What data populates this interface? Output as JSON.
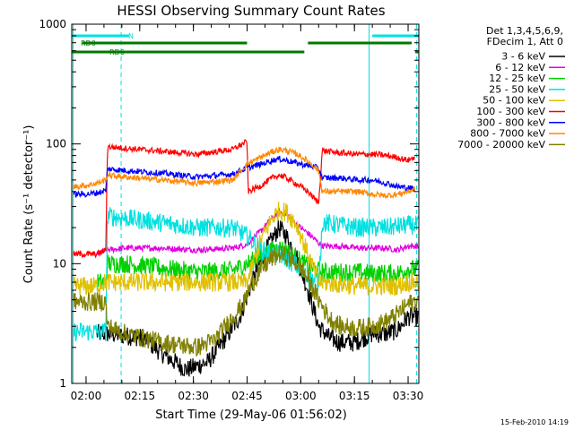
{
  "chart_data": {
    "type": "line",
    "title": "HESSI Observing Summary Count Rates",
    "xlabel": "Start Time (29-May-06 01:56:02)",
    "ylabel": "Count Rate (s⁻¹ detector⁻¹)",
    "y_scale": "log",
    "ylim": [
      1,
      1000
    ],
    "x_range_minutes": [
      0,
      97
    ],
    "x_ticks": [
      {
        "t": 4,
        "label": "02:00"
      },
      {
        "t": 19,
        "label": "02:15"
      },
      {
        "t": 34,
        "label": "02:30"
      },
      {
        "t": 49,
        "label": "02:45"
      },
      {
        "t": 64,
        "label": "03:00"
      },
      {
        "t": 79,
        "label": "03:15"
      },
      {
        "t": 94,
        "label": "03:30"
      }
    ],
    "y_ticks": [
      {
        "v": 1,
        "label": "1"
      },
      {
        "v": 10,
        "label": "10"
      },
      {
        "v": 100,
        "label": "100"
      },
      {
        "v": 1000,
        "label": "1000"
      }
    ],
    "legend_header": [
      "Det 1,3,4,5,6,9,",
      "FDecim 1, Att 0"
    ],
    "legend_placement": "right",
    "date_stamp": "15-Feb-2010 14:19",
    "flags": [
      {
        "label": "N",
        "color": "#00e0e0",
        "segments": [
          [
            0,
            16
          ],
          [
            84,
            97
          ]
        ]
      },
      {
        "label": "RD0",
        "color": "#007a00",
        "segments": [
          [
            3,
            49
          ],
          [
            66,
            95
          ]
        ]
      },
      {
        "label": "RD6",
        "color": "#007a00",
        "segments": [
          [
            0,
            49
          ],
          [
            49,
            65
          ],
          [
            96,
            97
          ]
        ]
      }
    ],
    "vlines": [
      {
        "t": 0.4,
        "style": "solid",
        "color": "#00e0e0"
      },
      {
        "t": 13.8,
        "style": "dashed",
        "color": "#00e0e0"
      },
      {
        "t": 83.1,
        "style": "solid",
        "color": "#00e0e0"
      },
      {
        "t": 96.4,
        "style": "dashed",
        "color": "#00e0e0"
      }
    ],
    "series": [
      {
        "name": "3 - 6 keV",
        "color": "#000000",
        "points": [
          [
            7,
            2.6
          ],
          [
            10,
            2.6
          ],
          [
            20,
            2.4
          ],
          [
            25,
            1.8
          ],
          [
            32,
            1.3
          ],
          [
            38,
            1.5
          ],
          [
            43,
            2.4
          ],
          [
            47,
            3.6
          ],
          [
            50,
            6.5
          ],
          [
            53,
            11
          ],
          [
            56,
            16
          ],
          [
            58,
            20
          ],
          [
            60,
            17
          ],
          [
            63,
            11
          ],
          [
            66,
            6
          ],
          [
            69,
            3
          ],
          [
            72,
            2.4
          ],
          [
            75,
            2.2
          ],
          [
            79,
            2.2
          ],
          [
            84,
            2.6
          ],
          [
            88,
            2.6
          ],
          [
            91,
            2.8
          ],
          [
            94,
            3.6
          ],
          [
            97,
            3.6
          ]
        ]
      },
      {
        "name": "6 - 12 keV",
        "color": "#e000e0",
        "points": [
          [
            7,
            12
          ],
          [
            10,
            13
          ],
          [
            15,
            13.5
          ],
          [
            25,
            13.5
          ],
          [
            35,
            13
          ],
          [
            45,
            13.5
          ],
          [
            49,
            14.5
          ],
          [
            53,
            19
          ],
          [
            56,
            24
          ],
          [
            58,
            27
          ],
          [
            60,
            26
          ],
          [
            63,
            21
          ],
          [
            66,
            18
          ],
          [
            70,
            14
          ],
          [
            75,
            14
          ],
          [
            80,
            13.5
          ],
          [
            84,
            13.5
          ],
          [
            88,
            13.5
          ],
          [
            91,
            13
          ],
          [
            94,
            14
          ],
          [
            97,
            14
          ]
        ]
      },
      {
        "name": "12 - 25 keV",
        "color": "#00d000",
        "points": [
          [
            7,
            7
          ],
          [
            9.5,
            7
          ],
          [
            10,
            10
          ],
          [
            15,
            10
          ],
          [
            25,
            9.2
          ],
          [
            35,
            8.5
          ],
          [
            45,
            8.8
          ],
          [
            49,
            10
          ],
          [
            53,
            11.5
          ],
          [
            56,
            13
          ],
          [
            58,
            13.5
          ],
          [
            60,
            13
          ],
          [
            63,
            11
          ],
          [
            66,
            9.5
          ],
          [
            70,
            8.5
          ],
          [
            75,
            8.5
          ],
          [
            80,
            8.5
          ],
          [
            84,
            8.3
          ],
          [
            88,
            8.3
          ],
          [
            91,
            8.3
          ],
          [
            94,
            9
          ],
          [
            97,
            9
          ]
        ]
      },
      {
        "name": "25 - 50 keV",
        "color": "#00e0e0",
        "points": [
          [
            0.5,
            2.7
          ],
          [
            4,
            2.7
          ],
          [
            7,
            2.7
          ],
          [
            9.5,
            2.7
          ],
          [
            10,
            25
          ],
          [
            15,
            24
          ],
          [
            25,
            22
          ],
          [
            35,
            20
          ],
          [
            45,
            20
          ],
          [
            49,
            17
          ],
          [
            53,
            13
          ],
          [
            56,
            12
          ],
          [
            58,
            12
          ],
          [
            60,
            11
          ],
          [
            63,
            9.5
          ],
          [
            66,
            7.5
          ],
          [
            69,
            7
          ],
          [
            70,
            22
          ],
          [
            75,
            21
          ],
          [
            80,
            20
          ],
          [
            84,
            20
          ],
          [
            88,
            20
          ],
          [
            91,
            20.5
          ],
          [
            94,
            21
          ],
          [
            97,
            21
          ]
        ]
      },
      {
        "name": "50 - 100 keV",
        "color": "#e0c000",
        "points": [
          [
            0.5,
            6.5
          ],
          [
            4,
            6.5
          ],
          [
            7,
            6.5
          ],
          [
            9.5,
            7
          ],
          [
            49,
            7
          ],
          [
            53,
            16
          ],
          [
            56,
            24
          ],
          [
            58,
            28
          ],
          [
            60,
            27
          ],
          [
            63,
            21
          ],
          [
            66,
            12
          ],
          [
            69,
            7
          ],
          [
            80,
            6.5
          ],
          [
            84,
            6.5
          ],
          [
            88,
            6.5
          ],
          [
            91,
            6.5
          ],
          [
            94,
            7
          ],
          [
            97,
            7
          ]
        ]
      },
      {
        "name": "100 - 300 keV",
        "color": "#ff0000",
        "points": [
          [
            0.5,
            12
          ],
          [
            4,
            12
          ],
          [
            7,
            12
          ],
          [
            9.5,
            13
          ],
          [
            10,
            95
          ],
          [
            15,
            92
          ],
          [
            25,
            87
          ],
          [
            35,
            82
          ],
          [
            45,
            90
          ],
          [
            49,
            105
          ],
          [
            49.3,
            40
          ],
          [
            53,
            45
          ],
          [
            56,
            52
          ],
          [
            58,
            55
          ],
          [
            60,
            52
          ],
          [
            63,
            46
          ],
          [
            66,
            40
          ],
          [
            69,
            32
          ],
          [
            70,
            88
          ],
          [
            75,
            84
          ],
          [
            80,
            82
          ],
          [
            84,
            82
          ],
          [
            88,
            80
          ],
          [
            91,
            77
          ],
          [
            94,
            73
          ],
          [
            96,
            78
          ]
        ]
      },
      {
        "name": "300 - 800 keV",
        "color": "#0000ff",
        "points": [
          [
            0.5,
            38
          ],
          [
            4,
            38
          ],
          [
            7,
            39
          ],
          [
            9.5,
            41
          ],
          [
            10,
            62
          ],
          [
            15,
            60
          ],
          [
            25,
            57
          ],
          [
            35,
            53
          ],
          [
            45,
            56
          ],
          [
            49,
            63
          ],
          [
            53,
            68
          ],
          [
            56,
            73
          ],
          [
            58,
            75
          ],
          [
            60,
            73
          ],
          [
            63,
            69
          ],
          [
            66,
            66
          ],
          [
            69,
            63
          ],
          [
            70,
            52
          ],
          [
            75,
            52
          ],
          [
            80,
            50
          ],
          [
            84,
            50
          ],
          [
            88,
            47
          ],
          [
            91,
            44
          ],
          [
            94,
            43
          ],
          [
            96,
            42
          ]
        ]
      },
      {
        "name": "800 - 7000 keV",
        "color": "#ff8800",
        "points": [
          [
            0.5,
            44
          ],
          [
            4,
            45
          ],
          [
            7,
            47
          ],
          [
            9.5,
            50
          ],
          [
            10,
            55
          ],
          [
            15,
            53
          ],
          [
            25,
            50
          ],
          [
            35,
            47
          ],
          [
            45,
            50
          ],
          [
            49,
            68
          ],
          [
            53,
            78
          ],
          [
            56,
            86
          ],
          [
            58,
            90
          ],
          [
            60,
            88
          ],
          [
            63,
            82
          ],
          [
            66,
            72
          ],
          [
            69,
            60
          ],
          [
            70,
            40
          ],
          [
            75,
            40
          ],
          [
            80,
            40
          ],
          [
            84,
            38
          ],
          [
            88,
            37
          ],
          [
            91,
            38
          ],
          [
            94,
            40
          ],
          [
            96,
            42
          ]
        ]
      },
      {
        "name": "7000 - 20000 keV",
        "color": "#808000",
        "points": [
          [
            0.5,
            4.8
          ],
          [
            4,
            4.8
          ],
          [
            7,
            4.8
          ],
          [
            9.5,
            4.8
          ],
          [
            10,
            3
          ],
          [
            15,
            2.6
          ],
          [
            25,
            2.2
          ],
          [
            35,
            2
          ],
          [
            40,
            2.3
          ],
          [
            44,
            3.3
          ],
          [
            48,
            4.6
          ],
          [
            50,
            6.5
          ],
          [
            53,
            9
          ],
          [
            56,
            11
          ],
          [
            58,
            12
          ],
          [
            60,
            11.5
          ],
          [
            63,
            10
          ],
          [
            66,
            7.5
          ],
          [
            69,
            5
          ],
          [
            72,
            3.5
          ],
          [
            75,
            3
          ],
          [
            80,
            2.9
          ],
          [
            84,
            3
          ],
          [
            88,
            3.3
          ],
          [
            91,
            3.8
          ],
          [
            94,
            4.6
          ],
          [
            97,
            5
          ]
        ]
      }
    ]
  }
}
